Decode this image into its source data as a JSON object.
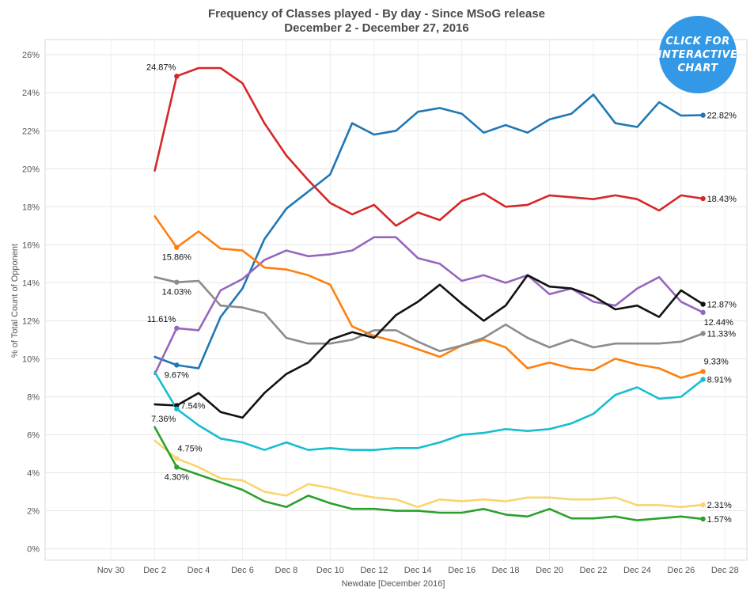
{
  "badge": {
    "line1": "CLICK FOR",
    "line2": "INTERACTIVE",
    "line3": "CHART",
    "color": "#3399e6"
  },
  "chart_data": {
    "type": "line",
    "title": "Frequency of Classes played - By day - Since MSoG release",
    "subtitle": "December 2 - December 27, 2016",
    "xlabel": "Newdate [December 2016]",
    "ylabel": "% of Total Count of Opponent",
    "x_tick_labels": [
      "Nov 30",
      "Dec 2",
      "Dec 4",
      "Dec 6",
      "Dec 8",
      "Dec 10",
      "Dec 12",
      "Dec 14",
      "Dec 16",
      "Dec 18",
      "Dec 20",
      "Dec 22",
      "Dec 24",
      "Dec 26",
      "Dec 28"
    ],
    "y_tick_labels": [
      "0%",
      "2%",
      "4%",
      "6%",
      "8%",
      "10%",
      "12%",
      "14%",
      "16%",
      "18%",
      "20%",
      "22%",
      "24%",
      "26%"
    ],
    "xlim_days": [
      -3,
      29
    ],
    "ylim": [
      -0.6,
      26.8
    ],
    "grid": true,
    "x_days": [
      2,
      3,
      4,
      5,
      6,
      7,
      8,
      9,
      10,
      11,
      12,
      13,
      14,
      15,
      16,
      17,
      18,
      19,
      20,
      21,
      22,
      23,
      24,
      25,
      26,
      27
    ],
    "series": [
      {
        "color": "#1f77b4",
        "values": [
          10.1,
          9.67,
          9.5,
          12.2,
          13.7,
          16.3,
          17.9,
          18.8,
          19.7,
          22.4,
          21.8,
          22.0,
          23.0,
          23.2,
          22.9,
          21.9,
          22.3,
          21.9,
          22.6,
          22.9,
          23.9,
          22.4,
          22.2,
          23.5,
          22.8,
          22.82
        ],
        "labels": [
          {
            "i": 1,
            "text": "9.67%",
            "pos": "below"
          },
          {
            "i": 25,
            "text": "22.82%",
            "pos": "right"
          }
        ]
      },
      {
        "color": "#d62728",
        "values": [
          19.9,
          24.87,
          25.3,
          25.3,
          24.5,
          22.4,
          20.7,
          19.4,
          18.2,
          17.6,
          18.1,
          17.0,
          17.7,
          17.3,
          18.3,
          18.7,
          18.0,
          18.1,
          18.6,
          18.5,
          18.4,
          18.6,
          18.4,
          17.8,
          18.6,
          18.43
        ],
        "labels": [
          {
            "i": 1,
            "text": "24.87%",
            "pos": "left-above"
          },
          {
            "i": 25,
            "text": "18.43%",
            "pos": "right"
          }
        ]
      },
      {
        "color": "#9467bd",
        "values": [
          9.2,
          11.61,
          11.5,
          13.6,
          14.2,
          15.2,
          15.7,
          15.4,
          15.5,
          15.7,
          16.4,
          16.4,
          15.3,
          15.0,
          14.1,
          14.4,
          14.0,
          14.4,
          13.4,
          13.7,
          13.0,
          12.8,
          13.7,
          14.3,
          13.0,
          12.44
        ],
        "labels": [
          {
            "i": 1,
            "text": "11.61%",
            "pos": "left-above"
          },
          {
            "i": 25,
            "text": "12.44%",
            "pos": "right-below"
          }
        ]
      },
      {
        "color": "#ff7f0e",
        "values": [
          17.5,
          15.86,
          16.7,
          15.8,
          15.7,
          14.8,
          14.7,
          14.4,
          13.9,
          11.7,
          11.2,
          10.9,
          10.5,
          10.1,
          10.7,
          11.0,
          10.6,
          9.5,
          9.8,
          9.5,
          9.4,
          10.0,
          9.7,
          9.5,
          9.0,
          9.33
        ],
        "labels": [
          {
            "i": 1,
            "text": "15.86%",
            "pos": "below"
          },
          {
            "i": 25,
            "text": "9.33%",
            "pos": "right-above"
          }
        ]
      },
      {
        "color": "#8c8c8c",
        "values": [
          14.3,
          14.03,
          14.1,
          12.8,
          12.7,
          12.4,
          11.1,
          10.8,
          10.8,
          11.0,
          11.5,
          11.5,
          10.9,
          10.4,
          10.7,
          11.1,
          11.8,
          11.1,
          10.6,
          11.0,
          10.6,
          10.8,
          10.8,
          10.8,
          10.9,
          11.33
        ],
        "labels": [
          {
            "i": 1,
            "text": "14.03%",
            "pos": "below"
          },
          {
            "i": 25,
            "text": "11.33%",
            "pos": "right"
          }
        ]
      },
      {
        "color": "#111111",
        "values": [
          7.6,
          7.54,
          8.2,
          7.2,
          6.9,
          8.2,
          9.2,
          9.8,
          11.0,
          11.4,
          11.1,
          12.3,
          13.0,
          13.9,
          12.9,
          12.0,
          12.8,
          14.4,
          13.8,
          13.7,
          13.3,
          12.6,
          12.8,
          12.2,
          13.6,
          12.87
        ],
        "labels": [
          {
            "i": 1,
            "text": "7.54%",
            "pos": "right"
          },
          {
            "i": 25,
            "text": "12.87%",
            "pos": "right"
          }
        ]
      },
      {
        "color": "#17becf",
        "values": [
          9.3,
          7.36,
          6.5,
          5.8,
          5.6,
          5.2,
          5.6,
          5.2,
          5.3,
          5.2,
          5.2,
          5.3,
          5.3,
          5.6,
          6.0,
          6.1,
          6.3,
          6.2,
          6.3,
          6.6,
          7.1,
          8.1,
          8.5,
          7.9,
          8.0,
          8.91
        ],
        "labels": [
          {
            "i": 1,
            "text": "7.36%",
            "pos": "left-below"
          },
          {
            "i": 25,
            "text": "8.91%",
            "pos": "right"
          }
        ]
      },
      {
        "color": "#f9d56e",
        "values": [
          5.7,
          4.75,
          4.3,
          3.7,
          3.6,
          3.0,
          2.8,
          3.4,
          3.2,
          2.9,
          2.7,
          2.6,
          2.2,
          2.6,
          2.5,
          2.6,
          2.5,
          2.7,
          2.7,
          2.6,
          2.6,
          2.7,
          2.3,
          2.3,
          2.2,
          2.31
        ],
        "labels": [
          {
            "i": 1,
            "text": "4.75%",
            "pos": "right-above"
          },
          {
            "i": 25,
            "text": "2.31%",
            "pos": "right"
          }
        ]
      },
      {
        "color": "#2ca02c",
        "values": [
          6.4,
          4.3,
          3.9,
          3.5,
          3.1,
          2.5,
          2.2,
          2.8,
          2.4,
          2.1,
          2.1,
          2.0,
          2.0,
          1.9,
          1.9,
          2.1,
          1.8,
          1.7,
          2.1,
          1.6,
          1.6,
          1.7,
          1.5,
          1.6,
          1.7,
          1.57
        ],
        "labels": [
          {
            "i": 1,
            "text": "4.30%",
            "pos": "below"
          },
          {
            "i": 25,
            "text": "1.57%",
            "pos": "right"
          }
        ]
      }
    ]
  }
}
